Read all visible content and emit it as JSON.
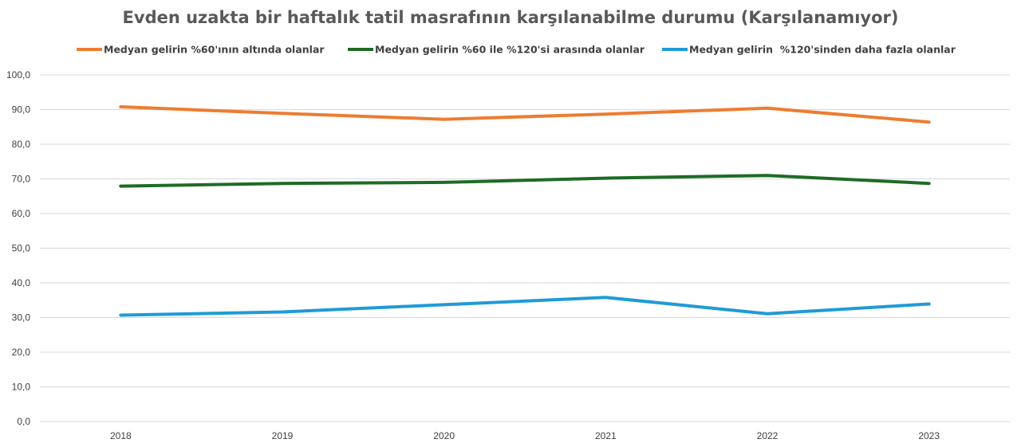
{
  "chart_data": {
    "type": "line",
    "title": "Evden uzakta bir haftalık tatil masrafının karşılanabilme durumu (Karşılanamıyor)",
    "xlabel": "",
    "ylabel": "",
    "categories": [
      "2018",
      "2019",
      "2020",
      "2021",
      "2022",
      "2023"
    ],
    "ylim": [
      0,
      100
    ],
    "yticks": [
      0,
      10,
      20,
      30,
      40,
      50,
      60,
      70,
      80,
      90,
      100
    ],
    "ytick_labels": [
      "0,0",
      "10,0",
      "20,0",
      "30,0",
      "40,0",
      "50,0",
      "60,0",
      "70,0",
      "80,0",
      "90,0",
      "100,0"
    ],
    "grid": true,
    "legend_position": "top",
    "series": [
      {
        "name": "Medyan gelirin %60'ının altında olanlar",
        "color": "#ED7D31",
        "values": [
          90.8,
          88.9,
          87.2,
          88.7,
          90.4,
          86.4
        ]
      },
      {
        "name": "Medyan gelirin %60 ile %120'si arasında olanlar",
        "color": "#1E6B25",
        "values": [
          67.9,
          68.7,
          69.0,
          70.2,
          71.0,
          68.7
        ]
      },
      {
        "name": "Medyan gelirin  %120'sinden daha fazla olanlar",
        "color": "#1F9BD7",
        "values": [
          30.7,
          31.6,
          33.7,
          35.8,
          31.1,
          33.9
        ]
      }
    ]
  }
}
